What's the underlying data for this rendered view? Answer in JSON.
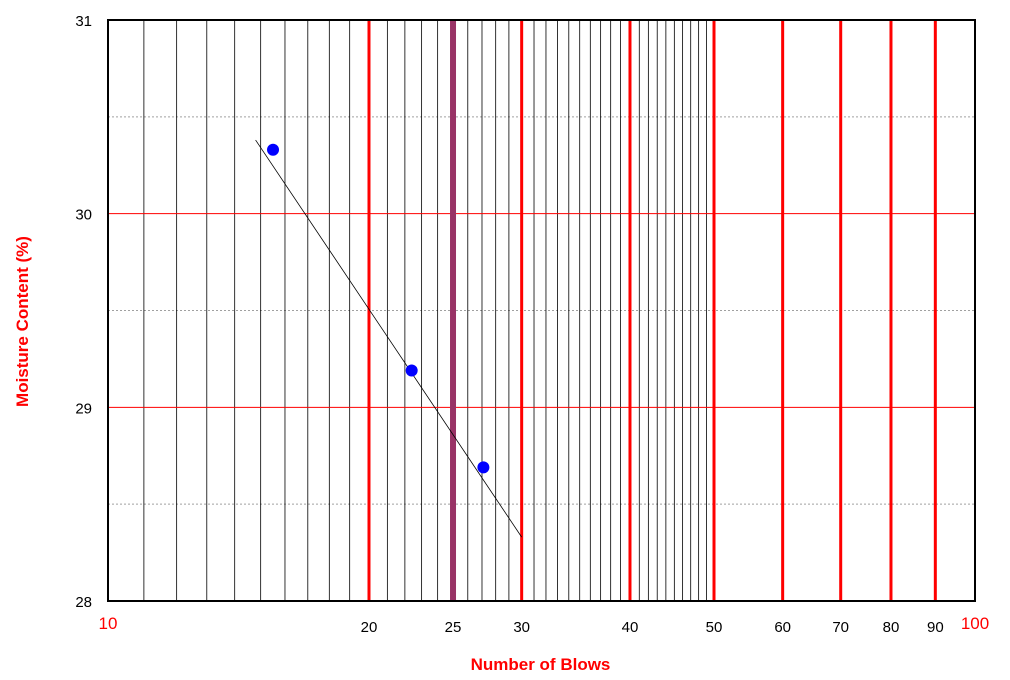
{
  "chart_data": {
    "type": "scatter",
    "xlabel": "Number of Blows",
    "ylabel": "Moisture Content (%)",
    "x_scale": "log",
    "xlim": [
      10,
      100
    ],
    "ylim": [
      28,
      31
    ],
    "y_ticks": [
      28,
      29,
      30,
      31
    ],
    "x_tick_labels": [
      {
        "value": 10,
        "label": "10",
        "style": "red"
      },
      {
        "value": 20,
        "label": "20",
        "style": "black"
      },
      {
        "value": 25,
        "label": "25",
        "style": "black"
      },
      {
        "value": 30,
        "label": "30",
        "style": "black"
      },
      {
        "value": 40,
        "label": "40",
        "style": "black"
      },
      {
        "value": 50,
        "label": "50",
        "style": "black"
      },
      {
        "value": 60,
        "label": "60",
        "style": "black"
      },
      {
        "value": 70,
        "label": "70",
        "style": "black"
      },
      {
        "value": 80,
        "label": "80",
        "style": "black"
      },
      {
        "value": 90,
        "label": "90",
        "style": "black"
      },
      {
        "value": 100,
        "label": "100",
        "style": "red"
      }
    ],
    "points": [
      {
        "x": 15.5,
        "y": 30.33
      },
      {
        "x": 22.4,
        "y": 29.19
      },
      {
        "x": 27.1,
        "y": 28.69
      }
    ],
    "trendline": {
      "x": [
        14.8,
        30
      ],
      "y": [
        30.38,
        28.33
      ]
    },
    "reference_line": {
      "x": 25
    },
    "grid": {
      "minor_x": [
        11,
        12,
        13,
        14,
        15,
        16,
        17,
        18,
        19,
        21,
        22,
        23,
        24,
        26,
        27,
        28,
        29,
        31,
        32,
        33,
        34,
        35,
        36,
        37,
        38,
        39,
        41,
        42,
        43,
        44,
        45,
        46,
        47,
        48,
        49
      ],
      "major_x": [
        20,
        30,
        40,
        50,
        60,
        70,
        80,
        90
      ],
      "major_y": [
        29,
        30
      ],
      "minor_y": [
        28.5,
        29.5,
        30.5
      ]
    },
    "colors": {
      "points": "#0000ff",
      "major_grid": "#ff0000",
      "reference_line": "#993366",
      "trendline": "#000000",
      "axis_titles": "#ff0000"
    }
  }
}
